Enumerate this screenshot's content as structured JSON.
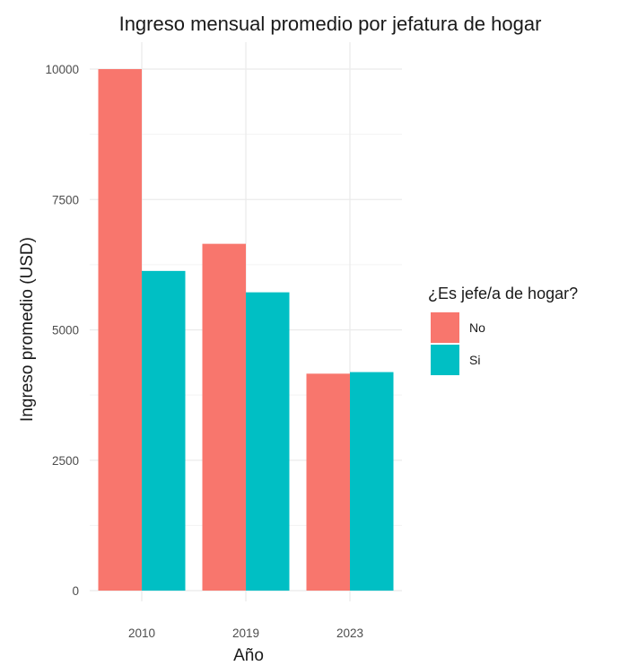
{
  "chart_data": {
    "type": "bar",
    "title": "Ingreso mensual promedio por jefatura de hogar",
    "xlabel": "Año",
    "ylabel": "Ingreso promedio (USD)",
    "categories": [
      "2010",
      "2019",
      "2023"
    ],
    "series": [
      {
        "name": "No",
        "color": "#F8766D",
        "values": [
          10000,
          6650,
          4160
        ]
      },
      {
        "name": "Si",
        "color": "#00BFC4",
        "values": [
          6130,
          5720,
          4190
        ]
      }
    ],
    "ylim": [
      0,
      10600
    ],
    "yticks": [
      0,
      2500,
      5000,
      7500,
      10000
    ],
    "ytick_labels": [
      "0",
      "2500",
      "5000",
      "7500",
      "10000"
    ],
    "grid": true,
    "legend": {
      "title": "¿Es jefe/a de hogar?",
      "placement": "right"
    }
  }
}
